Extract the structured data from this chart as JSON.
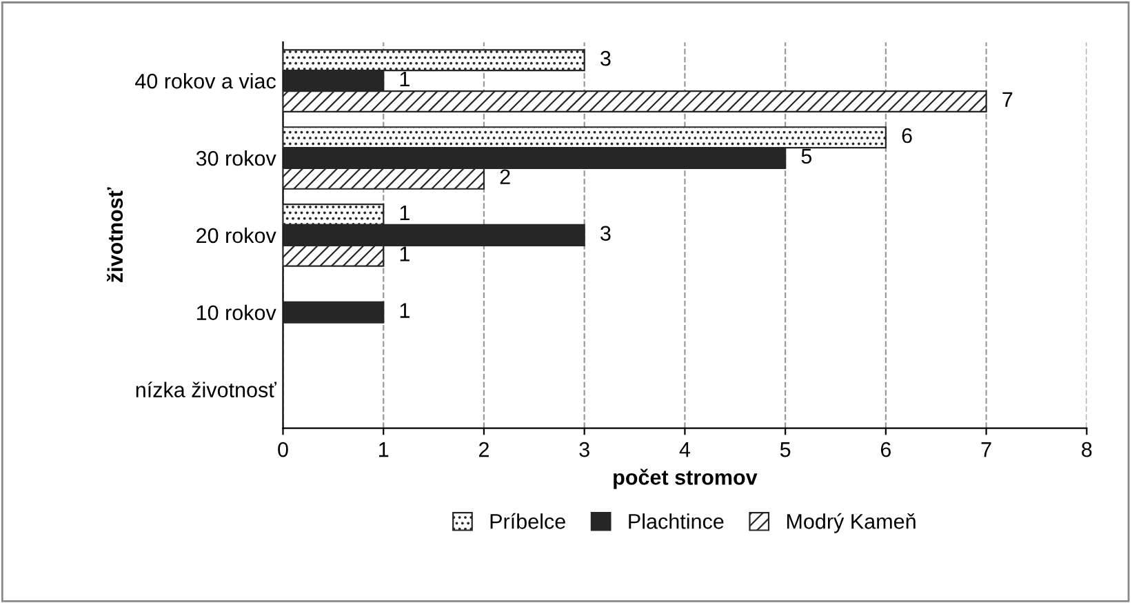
{
  "chart_data": {
    "type": "bar",
    "orientation": "horizontal",
    "categories": [
      "40 rokov a viac",
      "30 rokov",
      "20 rokov",
      "10 rokov",
      "nízka životnosť"
    ],
    "series": [
      {
        "name": "Príbelce",
        "color": "#262626",
        "values": [
          3,
          6,
          1,
          null,
          null
        ]
      },
      {
        "name": "Plachtince",
        "color": "#262626",
        "values": [
          1,
          5,
          3,
          1,
          null
        ]
      },
      {
        "name": "Modrý Kameň",
        "color": "#262626",
        "values": [
          7,
          2,
          1,
          null,
          null
        ]
      }
    ],
    "xlabel": "počet stromov",
    "ylabel": "životnosť",
    "xlim": [
      0,
      8
    ],
    "xticks": [
      0,
      1,
      2,
      3,
      4,
      5,
      6,
      7,
      8
    ],
    "grid": "x",
    "legend": "bottom",
    "data_labels": true
  }
}
